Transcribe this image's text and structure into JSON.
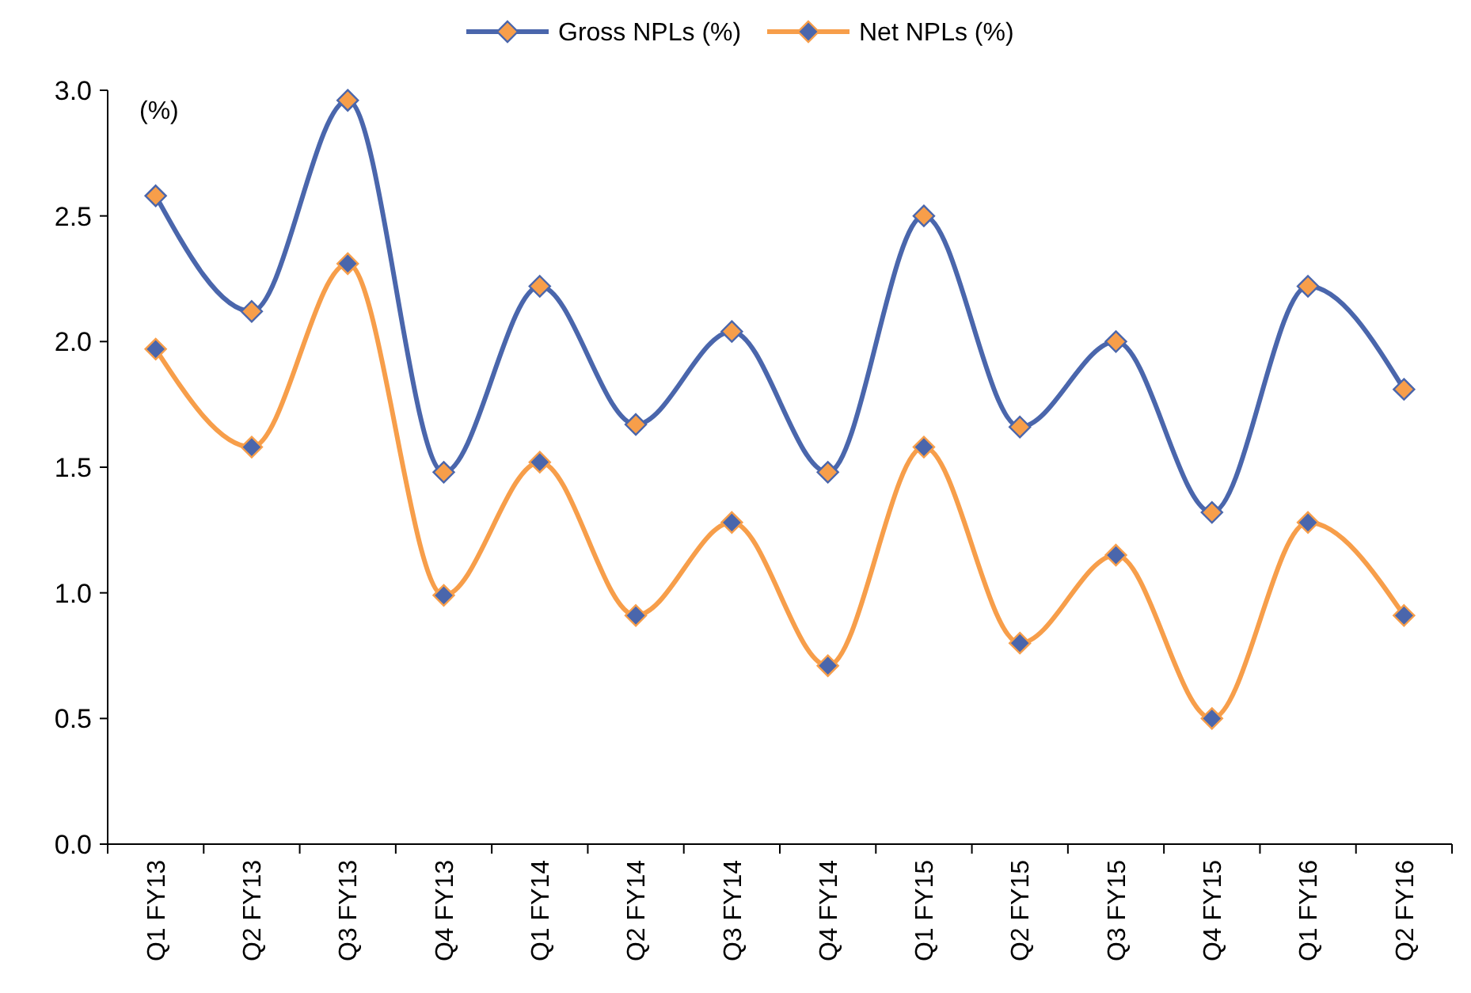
{
  "chart_data": {
    "type": "line",
    "ylabel": "(%)",
    "categories": [
      "Q1 FY13",
      "Q2 FY13",
      "Q3 FY13",
      "Q4 FY13",
      "Q1 FY14",
      "Q2 FY14",
      "Q3 FY14",
      "Q4 FY14",
      "Q1 FY15",
      "Q2 FY15",
      "Q3 FY15",
      "Q4 FY15",
      "Q1 FY16",
      "Q2 FY16"
    ],
    "series": [
      {
        "name": "Gross NPLs (%)",
        "color": "#4a66ac",
        "values": [
          2.58,
          2.12,
          2.96,
          1.48,
          2.22,
          1.67,
          2.04,
          1.48,
          2.5,
          1.66,
          2.0,
          1.32,
          2.22,
          1.81
        ]
      },
      {
        "name": "Net NPLs (%)",
        "color": "#f79e4a",
        "values": [
          1.97,
          1.58,
          2.31,
          0.99,
          1.52,
          0.91,
          1.28,
          0.71,
          1.58,
          0.8,
          1.15,
          0.5,
          1.28,
          0.91
        ]
      }
    ],
    "ylim": [
      0,
      3
    ],
    "yticks": [
      {
        "value": 0,
        "label": "0.0"
      },
      {
        "value": 0.5,
        "label": "0.5"
      },
      {
        "value": 1,
        "label": "1.0"
      },
      {
        "value": 1.5,
        "label": "1.5"
      },
      {
        "value": 2,
        "label": "2.0"
      },
      {
        "value": 2.5,
        "label": "2.5"
      },
      {
        "value": 3,
        "label": "3.0"
      }
    ],
    "grid": false,
    "legend": "top",
    "marker": "diamond",
    "line_style": "solid"
  }
}
